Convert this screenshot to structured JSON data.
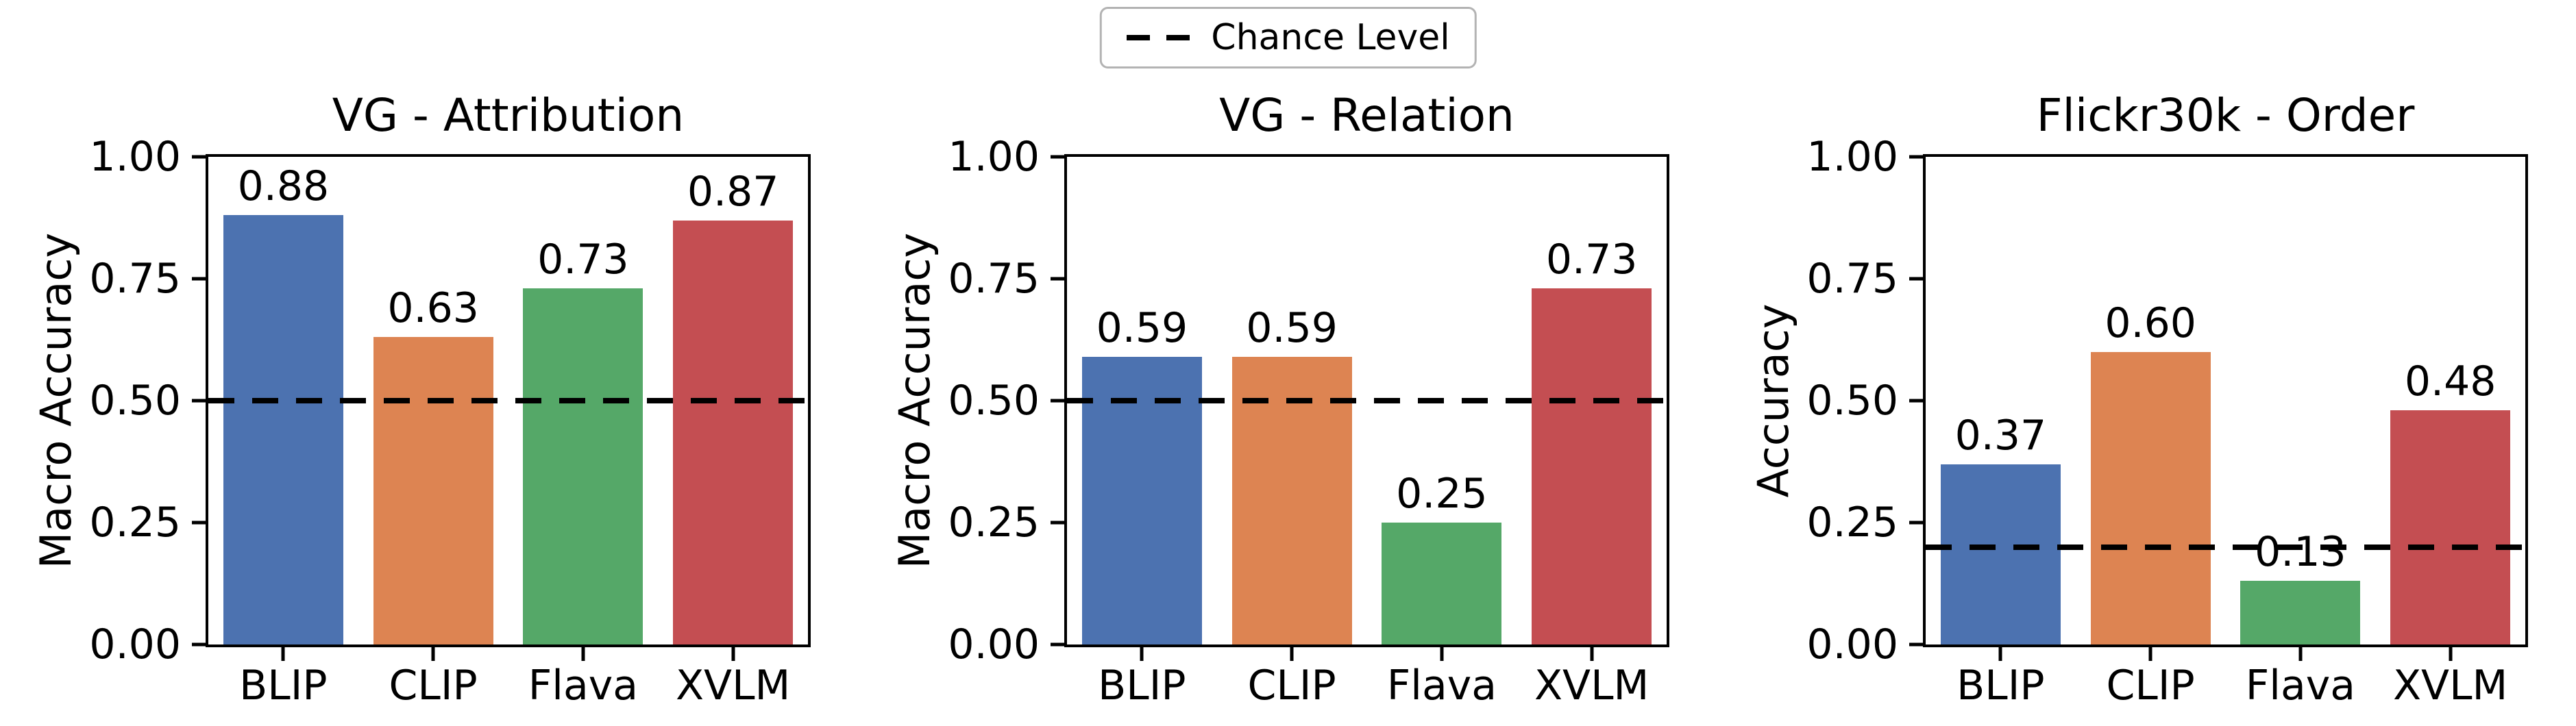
{
  "legend": {
    "label": "Chance Level"
  },
  "colors": {
    "bars": [
      "#4c72b0",
      "#dd8452",
      "#55a868",
      "#c44e52"
    ],
    "chance_line": "#000000"
  },
  "chart_data": [
    {
      "type": "bar",
      "title": "VG - Attribution",
      "ylabel": "Macro Accuracy",
      "categories": [
        "BLIP",
        "CLIP",
        "Flava",
        "XVLM"
      ],
      "values": [
        0.88,
        0.63,
        0.73,
        0.87
      ],
      "value_labels": [
        "0.88",
        "0.63",
        "0.73",
        "0.87"
      ],
      "chance_level": 0.5,
      "ylim": [
        0,
        1
      ],
      "yticks": [
        "0.00",
        "0.25",
        "0.50",
        "0.75",
        "1.00"
      ]
    },
    {
      "type": "bar",
      "title": "VG - Relation",
      "ylabel": "Macro Accuracy",
      "categories": [
        "BLIP",
        "CLIP",
        "Flava",
        "XVLM"
      ],
      "values": [
        0.59,
        0.59,
        0.25,
        0.73
      ],
      "value_labels": [
        "0.59",
        "0.59",
        "0.25",
        "0.73"
      ],
      "chance_level": 0.5,
      "ylim": [
        0,
        1
      ],
      "yticks": [
        "0.00",
        "0.25",
        "0.50",
        "0.75",
        "1.00"
      ]
    },
    {
      "type": "bar",
      "title": "Flickr30k - Order",
      "ylabel": "Accuracy",
      "categories": [
        "BLIP",
        "CLIP",
        "Flava",
        "XVLM"
      ],
      "values": [
        0.37,
        0.6,
        0.13,
        0.48
      ],
      "value_labels": [
        "0.37",
        "0.60",
        "0.13",
        "0.48"
      ],
      "chance_level": 0.2,
      "ylim": [
        0,
        1
      ],
      "yticks": [
        "0.00",
        "0.25",
        "0.50",
        "0.75",
        "1.00"
      ]
    }
  ]
}
